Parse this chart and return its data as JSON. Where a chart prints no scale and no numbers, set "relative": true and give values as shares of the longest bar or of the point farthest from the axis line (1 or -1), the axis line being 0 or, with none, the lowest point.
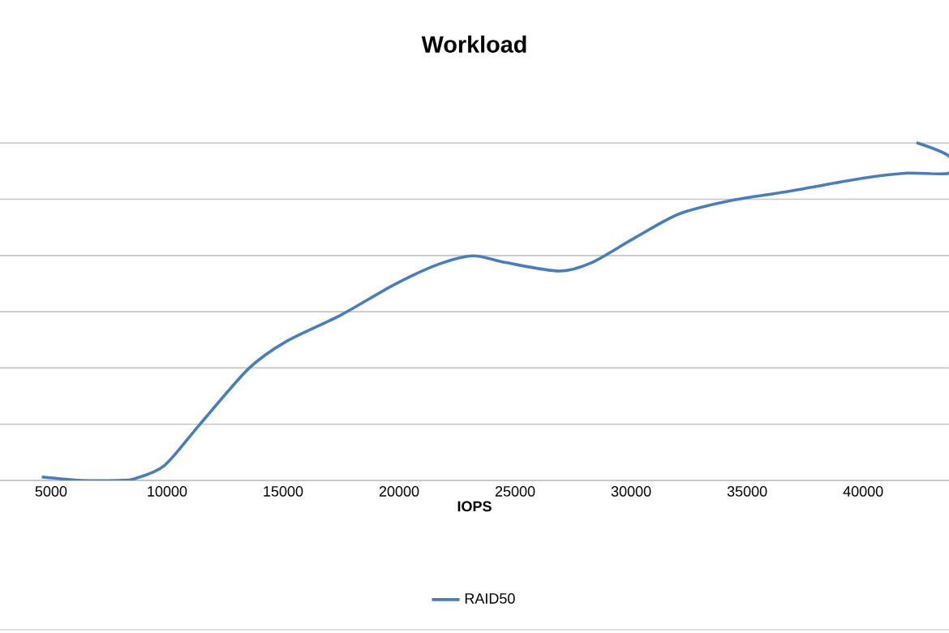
{
  "chart_data": {
    "type": "line",
    "title": "Workload",
    "xlabel": "IOPS",
    "relative": true,
    "xlim": [
      2800,
      43700
    ],
    "xticks": [
      5000,
      10000,
      15000,
      20000,
      25000,
      30000,
      35000,
      40000
    ],
    "grid": "y",
    "legend": "bottom",
    "marker": "none",
    "line_style": "solid",
    "series": [
      {
        "name": "RAID50",
        "color": "#4a7ebb",
        "x": [
          4600,
          6300,
          7900,
          8600,
          9900,
          11400,
          13500,
          15100,
          17500,
          19800,
          21700,
          23200,
          24600,
          26900,
          28300,
          30200,
          32100,
          34400,
          36700,
          40000,
          41900,
          43700,
          43700,
          42300
        ],
        "values": [
          0.01,
          0,
          0,
          0.005,
          0.045,
          0.165,
          0.33,
          0.41,
          0.49,
          0.58,
          0.64,
          0.665,
          0.645,
          0.62,
          0.645,
          0.72,
          0.79,
          0.83,
          0.855,
          0.895,
          0.91,
          0.91,
          0.96,
          1
        ]
      }
    ]
  }
}
